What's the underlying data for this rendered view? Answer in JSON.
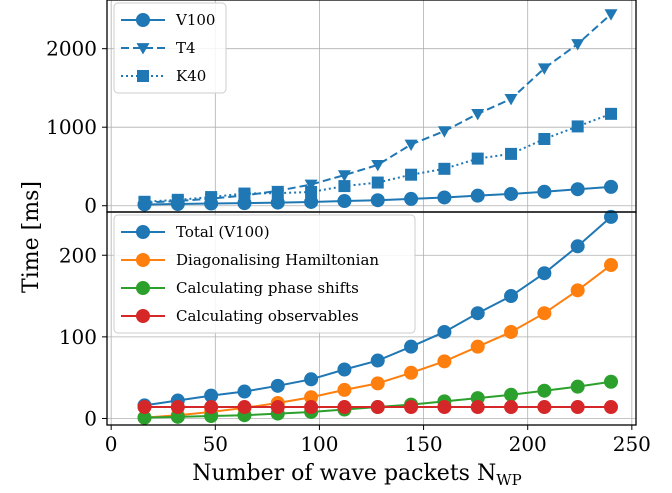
{
  "chart_data": {
    "type": "line",
    "x": [
      16,
      32,
      48,
      64,
      80,
      96,
      112,
      128,
      144,
      160,
      176,
      192,
      208,
      224,
      240
    ],
    "xlabel": "Number of wave packets N",
    "xlabel_sub": "WP",
    "ylabel": "Time [ms]",
    "xlim": [
      -2,
      252
    ],
    "xticks": [
      0,
      50,
      100,
      150,
      200,
      250
    ],
    "grid": true,
    "panels": [
      {
        "ylim": [
          -80,
          2620
        ],
        "yticks": [
          0,
          1000,
          2000
        ],
        "legend_position": "top-left",
        "series": [
          {
            "name": "V100",
            "color": "#1f77b4",
            "linestyle": "solid",
            "marker": "circle",
            "values": [
              16,
              22,
              28,
              33,
              40,
              48,
              60,
              70,
              87,
              105,
              128,
              150,
              178,
              210,
              240
            ]
          },
          {
            "name": "T4",
            "color": "#1f77b4",
            "linestyle": "dashed",
            "marker": "triangle-down",
            "values": [
              40,
              60,
              90,
              130,
              190,
              270,
              390,
              520,
              780,
              950,
              1170,
              1360,
              1750,
              2060,
              2440
            ]
          },
          {
            "name": "K40",
            "color": "#1f77b4",
            "linestyle": "dotted",
            "marker": "square",
            "values": [
              50,
              75,
              110,
              155,
              160,
              175,
              250,
              295,
              395,
              470,
              600,
              660,
              850,
              1010,
              1170
            ]
          }
        ]
      },
      {
        "ylim": [
          -8,
          253
        ],
        "yticks": [
          0,
          100,
          200
        ],
        "legend_position": "top-left",
        "series": [
          {
            "name": "Total (V100)",
            "color": "#1f77b4",
            "linestyle": "solid",
            "marker": "circle",
            "values": [
              16,
              22,
              28,
              33,
              40,
              48,
              60,
              71,
              88,
              106,
              129,
              150,
              178,
              211,
              247
            ]
          },
          {
            "name": "Diagonalising Hamiltonian",
            "color": "#ff7f0e",
            "linestyle": "solid",
            "marker": "circle",
            "values": [
              1,
              4,
              8,
              13,
              19,
              26,
              35,
              43,
              56,
              70,
              88,
              106,
              129,
              157,
              188
            ]
          },
          {
            "name": "Calculating phase shifts",
            "color": "#2ca02c",
            "linestyle": "solid",
            "marker": "circle",
            "values": [
              1,
              2,
              3,
              4,
              6,
              8,
              11,
              14,
              17,
              21,
              25,
              29,
              34,
              39,
              45
            ]
          },
          {
            "name": "Calculating observables",
            "color": "#d62728",
            "linestyle": "solid",
            "marker": "circle",
            "values": [
              14,
              14,
              14,
              14,
              14,
              14,
              14,
              14,
              14,
              14,
              14,
              14,
              14,
              14,
              14
            ]
          }
        ]
      }
    ]
  }
}
